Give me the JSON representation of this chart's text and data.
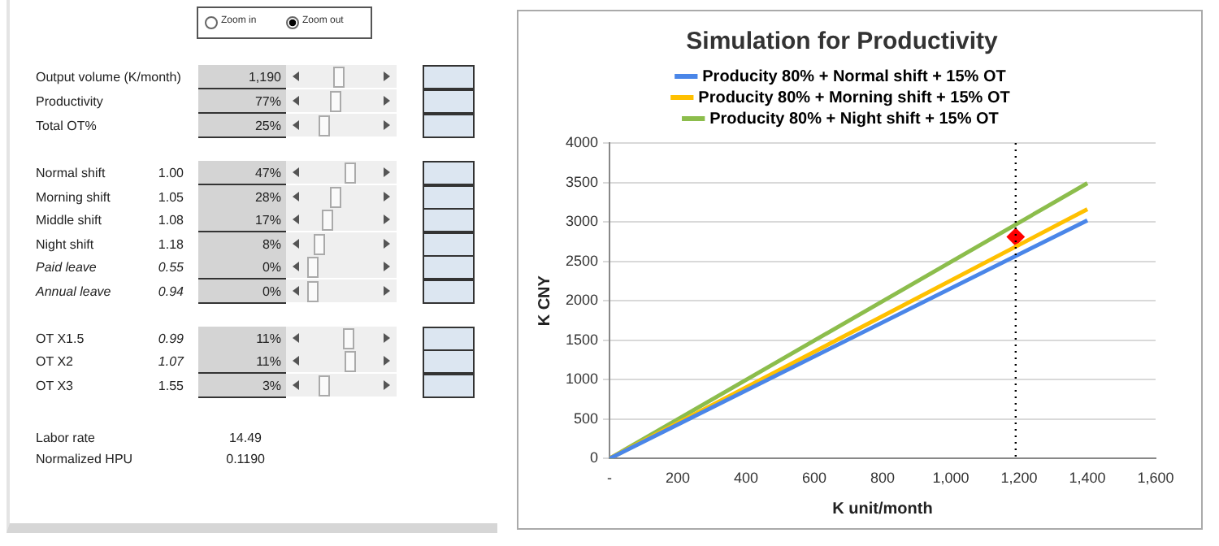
{
  "chart_data": [
    {
      "type": "other",
      "annotations": [
        "Zoom in",
        "Zoom out",
        "Output volume (K/month)",
        "1,190",
        "Productivity",
        "77%",
        "Total OT%",
        "25%",
        "Normal shift",
        "1.00",
        "47%",
        "Morning shift",
        "1.05",
        "28%",
        "Middle shift",
        "1.08",
        "17%",
        "Night shift",
        "1.18",
        "8%",
        "Paid leave",
        "0.55",
        "0%",
        "Annual leave",
        "0.94",
        "0%",
        "OT X1.5",
        "0.99",
        "11%",
        "OT X2",
        "1.07",
        "11%",
        "OT X3",
        "1.55",
        "3%",
        "Labor rate",
        "14.49",
        "Normalized HPU",
        "0.1190"
      ]
    },
    {
      "type": "line",
      "title": "Simulation for Productivity",
      "xlabel": "K unit/month",
      "ylabel": "K CNY",
      "series": [
        {
          "name": "Producity 80% + Normal shift + 15% OT",
          "color": "#4a86e8",
          "x": [
            0,
            1400
          ],
          "values": [
            0,
            3020
          ]
        },
        {
          "name": "Producity 80% + Morning shift + 15% OT",
          "color": "#ffc000",
          "x": [
            0,
            1400
          ],
          "values": [
            0,
            3160
          ]
        },
        {
          "name": "Producity 80% + Night shift + 15% OT",
          "color": "#8cbd4c",
          "x": [
            0,
            1400
          ],
          "values": [
            0,
            3490
          ]
        },
        {
          "type": "scatter",
          "marker": "diamond",
          "color": "#ff0000",
          "x": [
            1190
          ],
          "values": [
            2810
          ]
        }
      ],
      "xlim": [
        0,
        1600
      ],
      "xticks": [
        {
          "value": 0,
          "label": "-"
        },
        200,
        400,
        600,
        800,
        {
          "value": 1000,
          "label": "1,000"
        },
        {
          "value": 1200,
          "label": "1,200"
        },
        {
          "value": 1400,
          "label": "1,400"
        },
        {
          "value": 1600,
          "label": "1,600"
        }
      ],
      "ylim": [
        0,
        4000
      ],
      "yticks": [
        0,
        500,
        1000,
        1500,
        2000,
        2500,
        3000,
        3500,
        4000
      ],
      "ref_lines": [
        {
          "axis": "x",
          "value": 1190,
          "color": "#000000",
          "line_style": "dotted"
        }
      ],
      "grid": "y",
      "legend": "top",
      "marker": "none",
      "line_style": "solid"
    }
  ]
}
